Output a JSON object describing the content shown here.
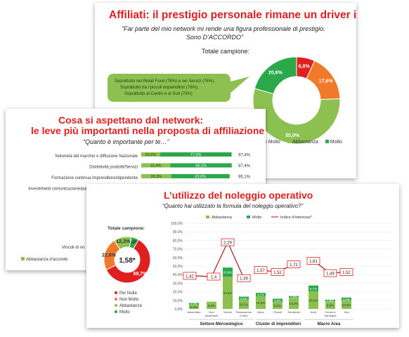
{
  "slide1": {
    "title": "Affiliati: il prestigio personale rimane un driver importante",
    "subtitle_line1": "“Far parte del mio network mi rende una figura professionale di prestigio.",
    "subtitle_line2": "Sono D’ACCORDO”",
    "sample_label": "Totale campione:",
    "callout_lines": [
      "Soprattutto nel Retail Food (78%) e nei Servizi (76%).",
      "Soprattutto tra i piccoli imprenditori (78%).",
      "Soprattutto al Centro e al Sud (79%)"
    ],
    "legend": [
      "Non Molto",
      "Abbastanza",
      "Molto"
    ]
  },
  "slide2": {
    "title_line1": "Cosa si aspettano dal network:",
    "title_line2": "le leve più importanti nella proposta di affiliazione",
    "subtitle": "“Quanto è importante per te…”",
    "rows": [
      {
        "label": "Notorietà del marchio e diffusione Nazionale",
        "a": "20,2%",
        "m": "77,2%",
        "total": "97,4%"
      },
      {
        "label": "Distintività prodotti/Servizi",
        "a": "31,4%",
        "m": "66,1%",
        "total": "97,4%"
      },
      {
        "label": "Formazione continua Imprenditore/dipendente",
        "a": "32,3%",
        "m": "63,0%",
        "total": "95,1%"
      },
      {
        "label": "Investimenti comunicazione/pubblicità a carico del network",
        "a": "32,2%",
        "m": "62,6%",
        "total": "94,8%"
      },
      {
        "label": "Ambit",
        "a": "",
        "m": "",
        "total": ""
      },
      {
        "label": "Suppo",
        "a": "",
        "m": "",
        "total": ""
      },
      {
        "label": "Supporto",
        "a": "",
        "m": "",
        "total": ""
      },
      {
        "label": "Suppo",
        "a": "",
        "m": "",
        "total": ""
      }
    ],
    "vincoli": "Vincoli di no",
    "legend": [
      "Abbastanza d’accordo"
    ]
  },
  "slide3": {
    "title": "L’utilizzo del noleggio operativo",
    "subtitle": "“Quanto hai utilizzato la formula del noleggio operativo?”",
    "sample_label": "Totale campione:",
    "donut_center": "1,58*",
    "legend_left": [
      "Per Nulla",
      "Non Molto",
      "Abbastanza",
      "Molto"
    ],
    "groups": [
      "Settore Merceologico",
      "Cluster di Imprenditori",
      "Macro Area"
    ]
  },
  "colors": {
    "red": "#e02020",
    "orange": "#f07a2a",
    "lightgreen": "#8cc152",
    "darkgreen": "#2aa84a",
    "brown": "#a01a1a"
  },
  "chart_data": [
    {
      "type": "pie",
      "title": "Totale campione:",
      "labels": [
        "Molto",
        "Abbastanza",
        "Non Molto",
        "Per Nulla"
      ],
      "values": [
        20.6,
        55.0,
        17.6,
        6.8
      ],
      "value_labels": [
        "20,6%",
        "55,0%",
        "17,6%",
        "6,8%"
      ]
    },
    {
      "type": "bar",
      "categories": [
        "Notorietà del marchio e diffusione Nazionale",
        "Distintività prodotti/Servizi",
        "Formazione continua Imprenditore/dipendente",
        "Investimenti comunicazione/pubblicità a carico del network"
      ],
      "series": [
        {
          "name": "Abbastanza d’accordo",
          "values": [
            20.2,
            31.4,
            32.3,
            32.2
          ]
        },
        {
          "values": [
            77.2,
            66.1,
            63.0,
            62.6
          ]
        }
      ],
      "totals": [
        97.4,
        97.4,
        95.1,
        94.8
      ]
    },
    {
      "type": "pie",
      "title": "Totale campione:",
      "labels": [
        "Per Nulla",
        "Non Molto",
        "Abbastanza",
        "Molto"
      ],
      "values": [
        59.7,
        22.6,
        12.3,
        5.4
      ],
      "value_labels": [
        "59,7%",
        "22,6%",
        "12,3%",
        "5,4%"
      ],
      "center": "1,58*"
    },
    {
      "type": "bar",
      "categories": [
        "Alimentare",
        "Non alimentare",
        "Servizi",
        "Ristorazione e Altro",
        "Micro",
        "Piccoli",
        "Strutturati",
        "Nord",
        "Centro e Sardegna",
        "Sud"
      ],
      "category_labels": [
        "Alimentare",
        "Non\nalimentare",
        "Servizi",
        "Ristorazione\ne Altro",
        "Micro",
        "Piccoli",
        "Strutturati",
        "Nord",
        "Centro e\nSardegna",
        "Sud"
      ],
      "series": [
        {
          "name": "Abbastanza",
          "values": [
            5.0,
            8.5,
            37.5,
            10.7,
            14.6,
            8.1,
            13.2,
            20.6,
            8.9,
            10.0
          ]
        },
        {
          "name": "Molto",
          "values": [
            2.0,
            0,
            10.8,
            3.6,
            4.1,
            3.8,
            1.9,
            6.7,
            1.8,
            3.3
          ]
        },
        {
          "name": "Indice d’interesse*",
          "values": [
            1.42,
            1.4,
            2.29,
            1.36,
            1.57,
            1.52,
            1.72,
            1.81,
            1.49,
            1.52
          ],
          "value_labels": [
            "1,42",
            "1,4",
            "2,29",
            "1,36",
            "1,57",
            "1,52",
            "1,72",
            "1,81",
            "1,49",
            "1,52"
          ]
        }
      ],
      "bar_labels_abb": [
        "5,0%",
        "8,5%",
        "37,5%",
        "10,7%",
        "14,6%",
        "8,1%",
        "13,2%",
        "20,6%",
        "8,9%",
        "10,0%"
      ],
      "bar_labels_molto": [
        "2,0%",
        "",
        "10,8%",
        "3,6%",
        "4,1%",
        "3,8%",
        "1,9%",
        "6,7%",
        "1,8%",
        "3,3%"
      ],
      "y_ticks": [
        "0,0%",
        "10,0%",
        "20,0%",
        "30,0%",
        "40,0%",
        "50,0%",
        "60,0%",
        "70,0%",
        "80,0%",
        "90,0%",
        "100,0%"
      ],
      "ylim": [
        0,
        100
      ],
      "groups": [
        "Settore Merceologico",
        "Cluster di Imprenditori",
        "Macro Area"
      ]
    }
  ]
}
